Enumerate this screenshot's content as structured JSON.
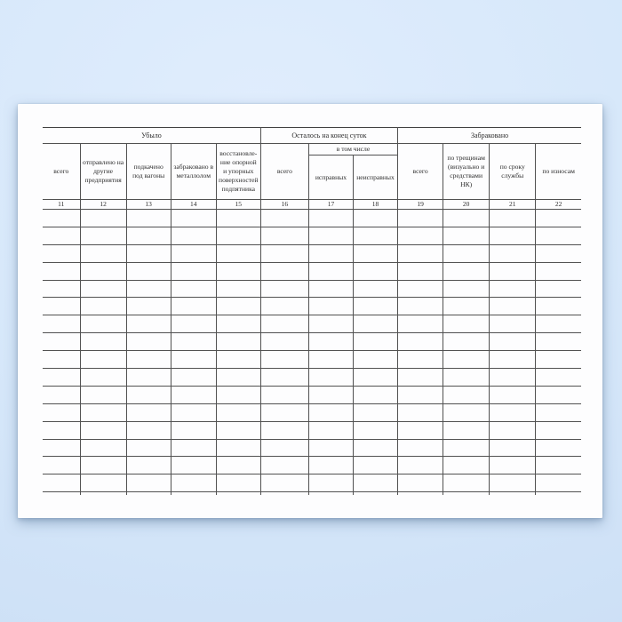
{
  "colors": {
    "background_center": "#e0edfd",
    "background_edge": "#cde0f6",
    "paper": "#fdfdfe",
    "table_line": "#515151",
    "text": "#2b2b2b"
  },
  "table": {
    "groups": [
      {
        "label": "Убыло",
        "colspan": 5
      },
      {
        "label": "Осталось на конец суток",
        "colspan": 3
      },
      {
        "label": "Забраковано",
        "colspan": 4
      }
    ],
    "subgroup": {
      "label": "в том числе"
    },
    "columns": [
      {
        "label": "всего",
        "number": "11"
      },
      {
        "label": "отправлено на другие предприятия",
        "number": "12"
      },
      {
        "label": "подкачено под вагоны",
        "number": "13"
      },
      {
        "label": "забраковано в металлолом",
        "number": "14"
      },
      {
        "label": "восстановле- ние опорной и упорных поверхностей подпятника",
        "number": "15"
      },
      {
        "label": "всего",
        "number": "16"
      },
      {
        "label": "исправных",
        "number": "17"
      },
      {
        "label": "неисправных",
        "number": "18"
      },
      {
        "label": "всего",
        "number": "19"
      },
      {
        "label": "по трещинам (визуально и средствами НК)",
        "number": "20"
      },
      {
        "label": "по сроку службы",
        "number": "21"
      },
      {
        "label": "по износам",
        "number": "22"
      }
    ],
    "body_row_count": 16
  }
}
